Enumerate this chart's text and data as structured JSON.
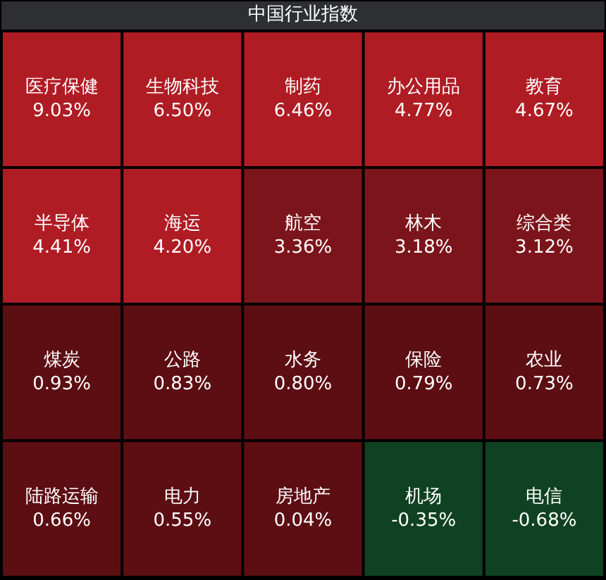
{
  "chart_data": {
    "type": "other",
    "title": "中国行业指数",
    "categories": [
      "医疗保健",
      "生物科技",
      "制药",
      "办公用品",
      "教育",
      "半导体",
      "海运",
      "航空",
      "林木",
      "综合类",
      "煤炭",
      "公路",
      "水务",
      "保险",
      "农业",
      "陆路运输",
      "电力",
      "房地产",
      "机场",
      "电信"
    ],
    "values": [
      9.03,
      6.5,
      6.46,
      4.77,
      4.67,
      4.41,
      4.2,
      3.36,
      3.18,
      3.12,
      0.93,
      0.83,
      0.8,
      0.79,
      0.73,
      0.66,
      0.55,
      0.04,
      -0.35,
      -0.68
    ],
    "value_labels": [
      "9.03%",
      "6.50%",
      "6.46%",
      "4.77%",
      "4.67%",
      "4.41%",
      "4.20%",
      "3.36%",
      "3.18%",
      "3.12%",
      "0.93%",
      "0.83%",
      "0.80%",
      "0.79%",
      "0.73%",
      "0.66%",
      "0.55%",
      "0.04%",
      "-0.35%",
      "-0.68%"
    ],
    "colors": [
      "#b01c24",
      "#b01c24",
      "#b01c24",
      "#b01c24",
      "#b01c24",
      "#b01c24",
      "#b01c24",
      "#7c151b",
      "#7c151b",
      "#7c151b",
      "#5c0e13",
      "#5c0e13",
      "#5c0e13",
      "#5c0e13",
      "#5c0e13",
      "#5c0e13",
      "#5c0e13",
      "#5c0e13",
      "#0f4222",
      "#0f4222"
    ]
  }
}
